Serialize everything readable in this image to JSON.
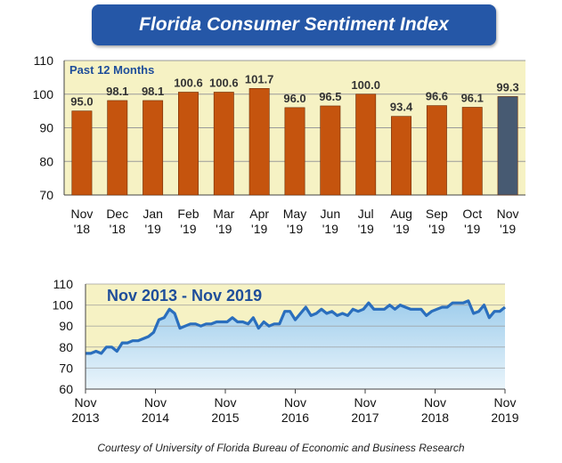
{
  "title": "Florida Consumer Sentiment Index",
  "footer": "Courtesy of University of Florida Bureau of Economic and Business Research",
  "colors": {
    "title_bg": "#2557a7",
    "bar": "#c5540e",
    "bar_highlight": "#475a72",
    "plot_bg": "#f6f2c4",
    "area_fill": "#b9dcf1",
    "area_line": "#2a6ebd",
    "label_blue": "#1f4e9a"
  },
  "chart_data": [
    {
      "type": "bar",
      "annotation": "Past 12 Months",
      "categories": [
        [
          "Nov",
          "'18"
        ],
        [
          "Dec",
          "'18"
        ],
        [
          "Jan",
          "'19"
        ],
        [
          "Feb",
          "'19"
        ],
        [
          "Mar",
          "'19"
        ],
        [
          "Apr",
          "'19"
        ],
        [
          "May",
          "'19"
        ],
        [
          "Jun",
          "'19"
        ],
        [
          "Jul",
          "'19"
        ],
        [
          "Aug",
          "'19"
        ],
        [
          "Sep",
          "'19"
        ],
        [
          "Oct",
          "'19"
        ],
        [
          "Nov",
          "'19"
        ]
      ],
      "values": [
        95.0,
        98.1,
        98.1,
        100.6,
        100.6,
        101.7,
        96.0,
        96.5,
        100.0,
        93.4,
        96.6,
        96.1,
        99.3
      ],
      "data_labels": [
        "95.0",
        "98.1",
        "98.1",
        "100.6",
        "100.6",
        "101.7",
        "96.0",
        "96.5",
        "100.0",
        "93.4",
        "96.6",
        "96.1",
        "99.3"
      ],
      "highlight_index": 12,
      "ylim": [
        70,
        110
      ],
      "yticks": [
        70,
        80,
        90,
        100,
        110
      ]
    },
    {
      "type": "area",
      "annotation": "Nov 2013 - Nov 2019",
      "x_ticks": [
        [
          "Nov",
          "2013"
        ],
        [
          "Nov",
          "2014"
        ],
        [
          "Nov",
          "2015"
        ],
        [
          "Nov",
          "2016"
        ],
        [
          "Nov",
          "2017"
        ],
        [
          "Nov",
          "2018"
        ],
        [
          "Nov",
          "2019"
        ]
      ],
      "x_start": "Nov 2013",
      "x_end": "Nov 2019",
      "values": [
        77,
        77,
        78,
        77,
        80,
        80,
        78,
        82,
        82,
        83,
        83,
        84,
        85,
        87,
        93,
        94,
        98,
        96,
        89,
        90,
        91,
        91,
        90,
        91,
        91,
        92,
        92,
        92,
        94,
        92,
        92,
        91,
        94,
        89,
        92,
        90,
        91,
        91,
        97,
        97,
        93,
        96,
        99,
        95,
        96,
        98,
        96,
        97,
        95,
        96,
        95,
        98,
        97,
        98,
        101,
        98,
        98,
        98,
        100,
        98,
        100,
        99,
        98,
        98,
        98,
        95,
        97,
        98,
        99,
        99,
        101,
        101,
        101,
        102,
        96,
        97,
        100,
        94,
        97,
        97,
        99
      ],
      "ylim": [
        60,
        110
      ],
      "yticks": [
        60,
        70,
        80,
        90,
        100,
        110
      ]
    }
  ]
}
